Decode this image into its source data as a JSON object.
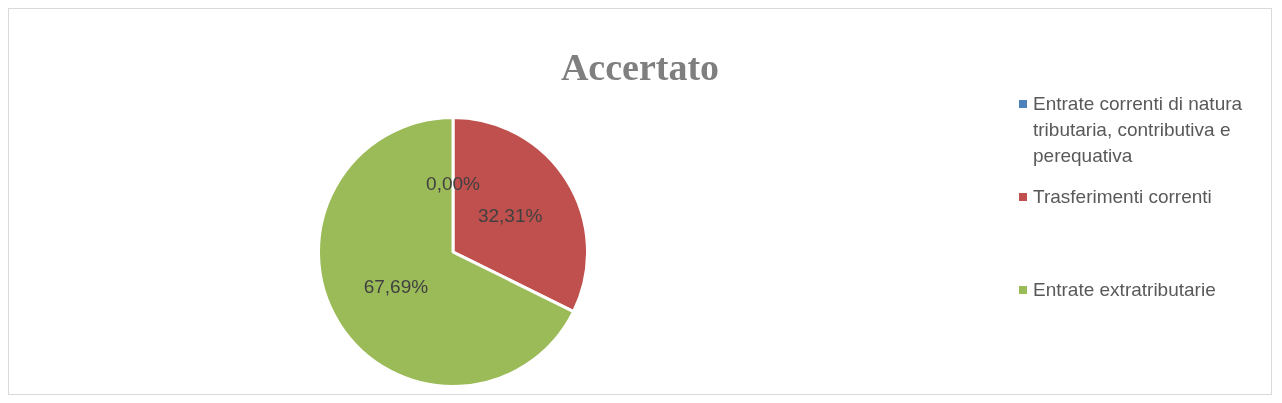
{
  "chart_data": {
    "type": "pie",
    "title": "Accertato",
    "categories": [
      "Entrate correnti di natura tributaria, contributiva e perequativa",
      "Trasferimenti correnti",
      "Entrate extratributarie"
    ],
    "values": [
      0,
      32.31,
      67.69
    ],
    "colors": [
      "#4f81bd",
      "#c0504d",
      "#9bbb59"
    ],
    "value_labels": [
      "0,00%",
      "32,31%",
      "67,69%"
    ],
    "legend": "right"
  }
}
